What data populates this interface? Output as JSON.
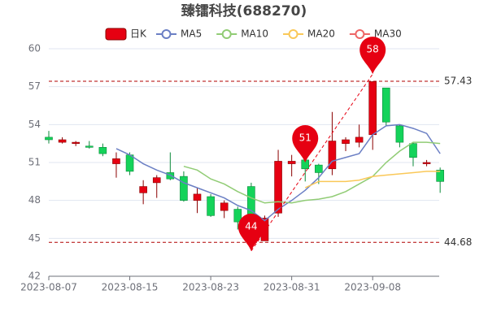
{
  "chart_data": {
    "type": "candlestick",
    "title": "臻镭科技(688270)",
    "categories": [
      "2023-08-07",
      null,
      null,
      null,
      null,
      null,
      "2023-08-15",
      null,
      null,
      null,
      null,
      null,
      "2023-08-23",
      null,
      null,
      null,
      null,
      null,
      "2023-08-31",
      null,
      null,
      null,
      null,
      null,
      "2023-09-08",
      null,
      null,
      null,
      null,
      null
    ],
    "candle_name": "日K",
    "up_color": "#e60012",
    "down_color": "#14d35a",
    "open": [
      53.0,
      52.6,
      52.5,
      52.3,
      52.2,
      50.9,
      51.6,
      48.6,
      49.4,
      50.2,
      49.9,
      48.0,
      48.3,
      47.2,
      47.3,
      49.1,
      44.8,
      47.0,
      50.9,
      51.2,
      50.8,
      50.5,
      52.5,
      52.6,
      53.2,
      56.9,
      53.9,
      52.5,
      50.9,
      50.4
    ],
    "close": [
      52.8,
      52.8,
      52.6,
      52.2,
      51.7,
      51.3,
      50.3,
      49.1,
      49.8,
      49.7,
      48.0,
      48.5,
      46.8,
      47.8,
      46.3,
      46.5,
      46.6,
      51.1,
      51.1,
      50.5,
      50.2,
      52.7,
      52.8,
      53.0,
      57.4,
      54.2,
      52.6,
      51.4,
      51.0,
      49.5
    ],
    "high": [
      53.5,
      53.0,
      52.7,
      52.7,
      52.5,
      51.8,
      51.8,
      49.6,
      50.0,
      51.8,
      50.3,
      49.0,
      48.5,
      48.0,
      47.5,
      49.4,
      46.8,
      52.0,
      51.6,
      51.5,
      50.9,
      55.0,
      53.0,
      54.0,
      57.43,
      56.9,
      54.0,
      52.6,
      51.2,
      50.6
    ],
    "low": [
      52.5,
      52.5,
      52.3,
      52.1,
      51.5,
      49.8,
      50.0,
      47.7,
      48.2,
      49.6,
      47.9,
      47.0,
      46.7,
      46.6,
      45.7,
      44.68,
      44.8,
      46.7,
      49.9,
      49.5,
      49.3,
      50.0,
      51.9,
      52.2,
      52.0,
      53.9,
      52.2,
      50.7,
      50.7,
      48.6
    ],
    "series": [
      {
        "name": "MA5",
        "color": "#6b7fc4",
        "values": [
          null,
          null,
          null,
          null,
          null,
          52.1,
          51.6,
          50.9,
          50.4,
          50.0,
          49.4,
          49.0,
          48.6,
          48.2,
          47.6,
          47.2,
          46.4,
          47.3,
          48.0,
          48.8,
          49.8,
          51.1,
          51.4,
          51.7,
          53.2,
          53.9,
          54.0,
          53.7,
          53.3,
          51.7
        ]
      },
      {
        "name": "MA10",
        "color": "#91cc75",
        "values": [
          null,
          null,
          null,
          null,
          null,
          null,
          null,
          null,
          null,
          null,
          50.7,
          50.4,
          49.7,
          49.3,
          48.7,
          48.2,
          47.8,
          47.9,
          47.8,
          48.0,
          48.1,
          48.3,
          48.7,
          49.3,
          49.9,
          51.0,
          51.9,
          52.6,
          52.6,
          52.5
        ]
      },
      {
        "name": "MA20",
        "color": "#fac858",
        "values": [
          null,
          null,
          null,
          null,
          null,
          null,
          null,
          null,
          null,
          null,
          null,
          null,
          null,
          null,
          null,
          null,
          null,
          null,
          null,
          49.0,
          49.5,
          49.5,
          49.5,
          49.6,
          49.9,
          50.0,
          50.1,
          50.2,
          50.3,
          50.3
        ]
      },
      {
        "name": "MA30",
        "color": "#ee6666",
        "values": [
          null,
          null,
          null,
          null,
          null,
          null,
          null,
          null,
          null,
          null,
          null,
          null,
          null,
          null,
          null,
          null,
          null,
          null,
          null,
          null,
          null,
          null,
          null,
          null,
          null,
          null,
          null,
          null,
          null,
          null
        ]
      }
    ],
    "ylim": [
      42,
      60
    ],
    "yticks": [
      42,
      45,
      48,
      51,
      54,
      57,
      60
    ],
    "grid": true,
    "reference_lines": [
      57.43,
      44.68
    ],
    "markers": [
      {
        "label": "44",
        "at": 15,
        "value": 44
      },
      {
        "label": "51",
        "at": 19,
        "value": 51
      },
      {
        "label": "58",
        "at": 24,
        "value": 58
      }
    ]
  }
}
